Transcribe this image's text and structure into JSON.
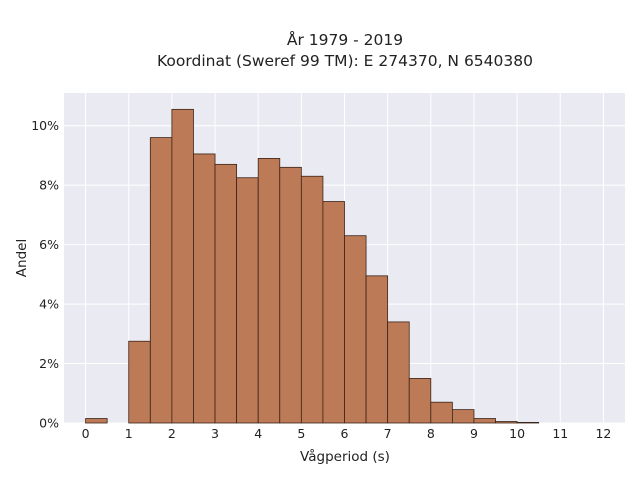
{
  "chart_data": {
    "type": "bar",
    "title": [
      "År 1979 - 2019",
      "Koordinat (Sweref 99 TM): E 274370, N 6540380"
    ],
    "xlabel": "Vågperiod (s)",
    "ylabel": "Andel",
    "bin_width": 0.5,
    "bin_starts": [
      0,
      0.5,
      1,
      1.5,
      2,
      2.5,
      3,
      3.5,
      4,
      4.5,
      5,
      5.5,
      6,
      6.5,
      7,
      7.5,
      8,
      8.5,
      9,
      9.5,
      10,
      10.5,
      11,
      11.5
    ],
    "values": [
      0.15,
      0,
      2.75,
      9.6,
      10.55,
      9.05,
      8.7,
      8.25,
      8.9,
      8.6,
      8.3,
      7.45,
      6.3,
      4.95,
      3.4,
      1.5,
      0.7,
      0.45,
      0.15,
      0.05,
      0.02,
      0,
      0,
      0
    ],
    "x_ticks": [
      0,
      1,
      2,
      3,
      4,
      5,
      6,
      7,
      8,
      9,
      10,
      11,
      12
    ],
    "x_tick_labels": [
      "0",
      "1",
      "2",
      "3",
      "4",
      "5",
      "6",
      "7",
      "8",
      "9",
      "10",
      "11",
      "12"
    ],
    "y_ticks": [
      0,
      2,
      4,
      6,
      8,
      10
    ],
    "y_tick_labels": [
      "0%",
      "2%",
      "4%",
      "6%",
      "8%",
      "10%"
    ],
    "xlim": [
      -0.5,
      12.5
    ],
    "ylim": [
      0,
      11.1
    ],
    "grid": true,
    "colors": {
      "bar_fill": "#bd7a57",
      "bar_edge": "#3b2418",
      "plot_bg": "#eaeaf2",
      "grid": "#ffffff"
    }
  }
}
